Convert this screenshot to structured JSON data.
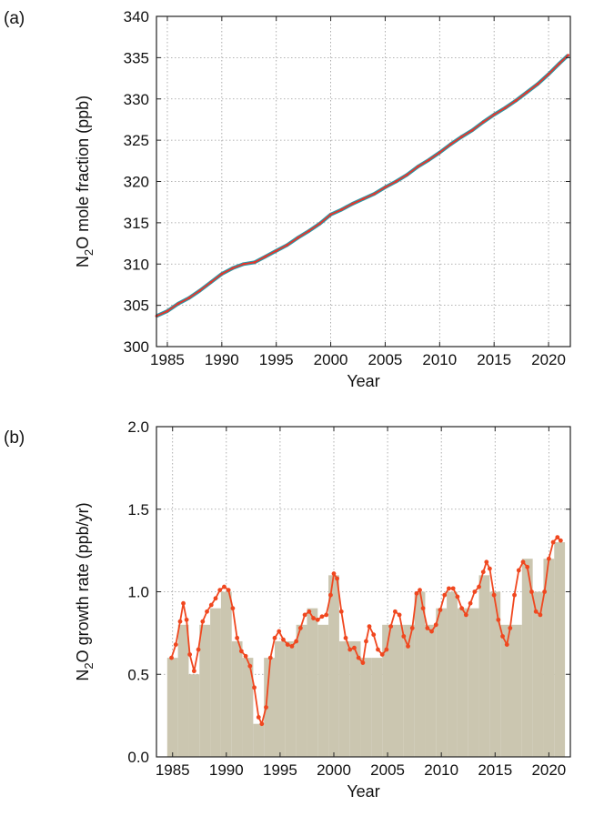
{
  "chart_data": [
    {
      "panel_label": "(a)",
      "type": "line",
      "xlabel": "Year",
      "ylabel": "N₂O mole fraction (ppb)",
      "ylabel_parts": [
        "N",
        "2",
        "O mole fraction (ppb)"
      ],
      "xlim": [
        1984,
        2022
      ],
      "ylim": [
        300,
        340
      ],
      "xticks": [
        1985,
        1990,
        1995,
        2000,
        2005,
        2010,
        2015,
        2020
      ],
      "yticks": [
        300,
        305,
        310,
        315,
        320,
        325,
        330,
        335,
        340
      ],
      "grid": true,
      "series_color": "#e8342a",
      "trend_color": "#2a9aa8",
      "series": [
        {
          "x": [
            1984.0,
            1985.0,
            1986.0,
            1987.0,
            1988.0,
            1989.0,
            1990.0,
            1991.0,
            1992.0,
            1993.0,
            1994.0,
            1995.0,
            1996.0,
            1997.0,
            1998.0,
            1999.0,
            2000.0,
            2001.0,
            2002.0,
            2003.0,
            2004.0,
            2005.0,
            2006.0,
            2007.0,
            2008.0,
            2009.0,
            2010.0,
            2011.0,
            2012.0,
            2013.0,
            2014.0,
            2015.0,
            2016.0,
            2017.0,
            2018.0,
            2019.0,
            2020.0,
            2021.0,
            2021.8
          ],
          "y": [
            303.7,
            304.3,
            305.2,
            305.9,
            306.8,
            307.8,
            308.8,
            309.5,
            310.0,
            310.2,
            310.9,
            311.6,
            312.3,
            313.2,
            314.0,
            314.9,
            316.0,
            316.6,
            317.3,
            317.9,
            318.5,
            319.3,
            320.0,
            320.8,
            321.8,
            322.6,
            323.5,
            324.5,
            325.4,
            326.2,
            327.2,
            328.1,
            328.9,
            329.8,
            330.8,
            331.8,
            333.0,
            334.3,
            335.3
          ]
        }
      ]
    },
    {
      "panel_label": "(b)",
      "type": "bar",
      "xlabel": "Year",
      "ylabel": "N₂O growth rate (ppb/yr)",
      "ylabel_parts": [
        "N",
        "2",
        "O growth rate (ppb/yr)"
      ],
      "xlim": [
        1983.5,
        2022
      ],
      "ylim": [
        0.0,
        2.0
      ],
      "xticks": [
        1985,
        1990,
        1995,
        2000,
        2005,
        2010,
        2015,
        2020
      ],
      "yticks": [
        "0.0",
        "0.5",
        "1.0",
        "1.5",
        "2.0"
      ],
      "grid": true,
      "bar_color": "#cbc6b0",
      "line_color": "#f0471f",
      "bars": {
        "years": [
          1985,
          1986,
          1987,
          1988,
          1989,
          1990,
          1991,
          1992,
          1993,
          1994,
          1995,
          1996,
          1997,
          1998,
          1999,
          2000,
          2001,
          2002,
          2003,
          2004,
          2005,
          2006,
          2007,
          2008,
          2009,
          2010,
          2011,
          2012,
          2013,
          2014,
          2015,
          2016,
          2017,
          2018,
          2019,
          2020,
          2021
        ],
        "values": [
          0.6,
          0.8,
          0.5,
          0.8,
          0.9,
          1.0,
          0.7,
          0.6,
          0.2,
          0.6,
          0.7,
          0.7,
          0.8,
          0.9,
          0.8,
          1.1,
          0.7,
          0.7,
          0.6,
          0.6,
          0.8,
          0.8,
          0.8,
          1.0,
          0.8,
          0.9,
          1.0,
          0.9,
          0.9,
          1.1,
          1.0,
          0.8,
          0.8,
          1.2,
          1.0,
          1.2,
          1.3
        ]
      },
      "line": {
        "x": [
          1984.9,
          1985.3,
          1985.7,
          1986.0,
          1986.3,
          1986.6,
          1987.0,
          1987.4,
          1987.8,
          1988.2,
          1988.6,
          1989.0,
          1989.4,
          1989.8,
          1990.2,
          1990.6,
          1991.0,
          1991.4,
          1991.8,
          1992.2,
          1992.6,
          1993.0,
          1993.3,
          1993.7,
          1994.1,
          1994.5,
          1994.9,
          1995.3,
          1995.7,
          1996.1,
          1996.5,
          1996.9,
          1997.3,
          1997.7,
          1998.1,
          1998.5,
          1998.9,
          1999.3,
          1999.7,
          2000.0,
          2000.3,
          2000.7,
          2001.1,
          2001.5,
          2001.9,
          2002.3,
          2002.7,
          2003.0,
          2003.3,
          2003.7,
          2004.1,
          2004.5,
          2004.9,
          2005.3,
          2005.7,
          2006.1,
          2006.5,
          2006.9,
          2007.3,
          2007.7,
          2008.0,
          2008.3,
          2008.7,
          2009.1,
          2009.5,
          2009.9,
          2010.3,
          2010.7,
          2011.1,
          2011.5,
          2011.9,
          2012.3,
          2012.7,
          2013.1,
          2013.5,
          2013.9,
          2014.2,
          2014.5,
          2014.9,
          2015.3,
          2015.7,
          2016.1,
          2016.4,
          2016.8,
          2017.2,
          2017.6,
          2018.0,
          2018.4,
          2018.8,
          2019.2,
          2019.6,
          2020.0,
          2020.4,
          2020.8,
          2021.1
        ],
        "y": [
          0.6,
          0.68,
          0.82,
          0.93,
          0.83,
          0.62,
          0.52,
          0.65,
          0.82,
          0.88,
          0.92,
          0.96,
          1.01,
          1.03,
          1.01,
          0.9,
          0.72,
          0.64,
          0.61,
          0.55,
          0.42,
          0.24,
          0.2,
          0.3,
          0.6,
          0.72,
          0.76,
          0.71,
          0.68,
          0.67,
          0.7,
          0.78,
          0.86,
          0.88,
          0.84,
          0.83,
          0.85,
          0.86,
          0.98,
          1.11,
          1.08,
          0.88,
          0.72,
          0.65,
          0.66,
          0.6,
          0.57,
          0.7,
          0.79,
          0.74,
          0.65,
          0.62,
          0.65,
          0.79,
          0.88,
          0.86,
          0.73,
          0.67,
          0.78,
          0.99,
          1.01,
          0.9,
          0.78,
          0.76,
          0.8,
          0.89,
          0.98,
          1.02,
          1.02,
          0.97,
          0.9,
          0.86,
          0.93,
          1.0,
          1.03,
          1.12,
          1.18,
          1.14,
          0.98,
          0.83,
          0.73,
          0.68,
          0.78,
          0.98,
          1.13,
          1.18,
          1.15,
          1.0,
          0.88,
          0.86,
          1.0,
          1.2,
          1.3,
          1.33,
          1.31
        ]
      }
    }
  ]
}
